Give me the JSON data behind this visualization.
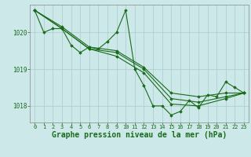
{
  "background_color": "#cce8e8",
  "grid_color": "#aacccc",
  "line_color": "#1a6b1a",
  "xlabel": "Graphe pression niveau de la mer (hPa)",
  "xlabel_fontsize": 7,
  "xlim": [
    -0.5,
    23.5
  ],
  "ylim": [
    1017.55,
    1020.75
  ],
  "yticks": [
    1018,
    1019,
    1020
  ],
  "xticks": [
    0,
    1,
    2,
    3,
    4,
    5,
    6,
    7,
    8,
    9,
    10,
    11,
    12,
    13,
    14,
    15,
    16,
    17,
    18,
    19,
    20,
    21,
    22,
    23
  ],
  "series": [
    {
      "x": [
        0,
        1,
        2,
        3,
        4,
        5,
        6,
        7,
        8,
        9,
        10,
        11,
        12,
        13,
        14,
        15,
        16,
        17,
        18,
        19,
        20,
        21,
        22,
        23
      ],
      "y": [
        1020.6,
        1020.0,
        1020.1,
        1020.1,
        1019.65,
        1019.45,
        1019.6,
        1019.55,
        1019.75,
        1020.0,
        1020.6,
        1019.0,
        1018.55,
        1018.0,
        1018.0,
        1017.75,
        1017.85,
        1018.15,
        1017.95,
        1018.3,
        1018.25,
        1018.65,
        1018.5,
        1018.35
      ]
    },
    {
      "x": [
        0,
        3,
        6,
        9,
        12,
        15,
        18,
        21,
        23
      ],
      "y": [
        1020.6,
        1020.15,
        1019.6,
        1019.5,
        1019.05,
        1018.35,
        1018.25,
        1018.35,
        1018.35
      ]
    },
    {
      "x": [
        0,
        3,
        6,
        9,
        12,
        15,
        18,
        21,
        23
      ],
      "y": [
        1020.6,
        1020.1,
        1019.55,
        1019.45,
        1019.0,
        1018.2,
        1018.1,
        1018.25,
        1018.35
      ]
    },
    {
      "x": [
        0,
        3,
        6,
        9,
        12,
        15,
        18,
        21,
        23
      ],
      "y": [
        1020.6,
        1020.1,
        1019.55,
        1019.35,
        1018.9,
        1018.05,
        1018.0,
        1018.2,
        1018.35
      ]
    }
  ]
}
